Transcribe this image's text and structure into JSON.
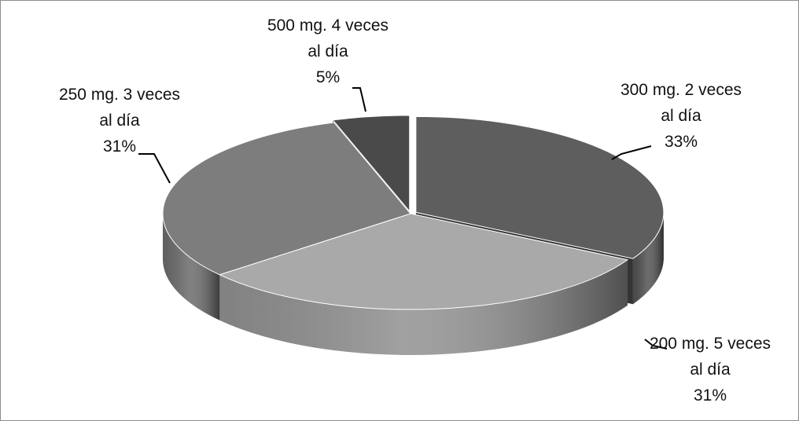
{
  "chart_data": {
    "type": "pie",
    "title": "",
    "three_d": true,
    "legend": "none",
    "start_angle_deg": 90,
    "direction": "clockwise",
    "slices": [
      {
        "label_lines": [
          "300 mg. 2 veces",
          "al día"
        ],
        "percent_label": "33%",
        "value": 33,
        "color": "#5e5e5e",
        "exploded": true
      },
      {
        "label_lines": [
          "200 mg. 5 veces",
          "al día"
        ],
        "percent_label": "31%",
        "value": 31,
        "color": "#a9a9a9",
        "exploded": false
      },
      {
        "label_lines": [
          "250 mg. 3 veces",
          "al día"
        ],
        "percent_label": "31%",
        "value": 31,
        "color": "#7d7d7d",
        "exploded": false
      },
      {
        "label_lines": [
          "500 mg. 4 veces",
          "al día"
        ],
        "percent_label": "5%",
        "value": 5,
        "color": "#4a4a4a",
        "exploded": true
      }
    ]
  }
}
